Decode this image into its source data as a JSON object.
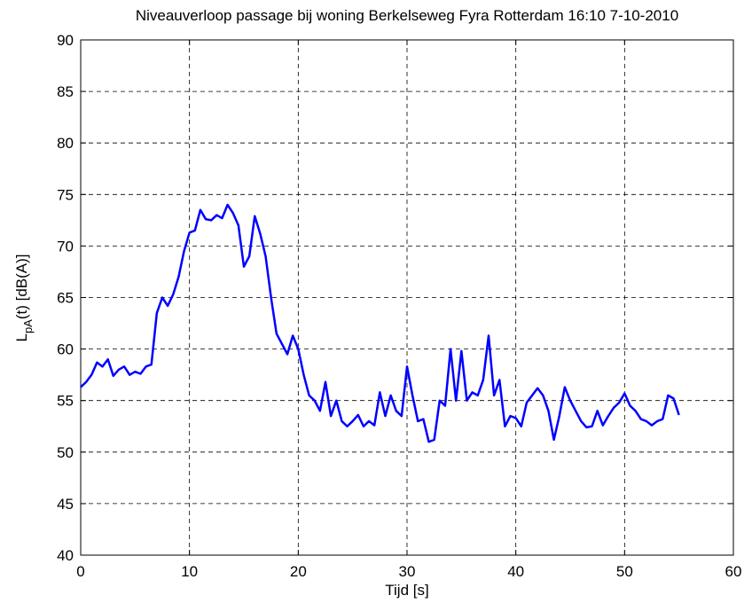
{
  "chart_data": {
    "type": "line",
    "title": "Niveauverloop passage bij woning Berkelseweg Fyra Rotterdam 16:10 7-10-2010",
    "xlabel": "Tijd [s]",
    "ylabel": {
      "base": "L",
      "subscript": "pA",
      "rest": "(t) [dB(A)]"
    },
    "x": [
      0,
      0.5,
      1,
      1.5,
      2,
      2.5,
      3,
      3.5,
      4,
      4.5,
      5,
      5.5,
      6,
      6.5,
      7,
      7.5,
      8,
      8.5,
      9,
      9.5,
      10,
      10.5,
      11,
      11.5,
      12,
      12.5,
      13,
      13.5,
      14,
      14.5,
      15,
      15.5,
      16,
      16.5,
      17,
      17.5,
      18,
      18.5,
      19,
      19.5,
      20,
      20.5,
      21,
      21.5,
      22,
      22.5,
      23,
      23.5,
      24,
      24.5,
      25,
      25.5,
      26,
      26.5,
      27,
      27.5,
      28,
      28.5,
      29,
      29.5,
      30,
      30.5,
      31,
      31.5,
      32,
      32.5,
      33,
      33.5,
      34,
      34.5,
      35,
      35.5,
      36,
      36.5,
      37,
      37.5,
      38,
      38.5,
      39,
      39.5,
      40,
      40.5,
      41,
      41.5,
      42,
      42.5,
      43,
      43.5,
      44,
      44.5,
      45,
      45.5,
      46,
      46.5,
      47,
      47.5,
      48,
      48.5,
      49,
      49.5,
      50,
      50.5,
      51,
      51.5,
      52,
      52.5,
      53,
      53.5,
      54,
      54.5,
      55
    ],
    "series": [
      {
        "name": "LpA",
        "color": "#0000ff",
        "values": [
          56.3,
          56.8,
          57.5,
          58.7,
          58.3,
          59.0,
          57.4,
          58.0,
          58.3,
          57.5,
          57.8,
          57.6,
          58.3,
          58.5,
          63.5,
          65.0,
          64.2,
          65.3,
          67.0,
          69.5,
          71.3,
          71.5,
          73.5,
          72.6,
          72.5,
          73.0,
          72.7,
          74.0,
          73.2,
          72.0,
          68.0,
          69.0,
          72.9,
          71.2,
          69.0,
          65.0,
          61.5,
          60.5,
          59.5,
          61.3,
          60.0,
          57.5,
          55.5,
          55.0,
          54.0,
          56.8,
          53.5,
          55.0,
          53.0,
          52.5,
          53.0,
          53.6,
          52.5,
          53.0,
          52.6,
          55.8,
          53.5,
          55.5,
          54.0,
          53.5,
          58.3,
          55.5,
          53.0,
          53.2,
          51.0,
          51.2,
          55.0,
          54.5,
          60.0,
          55.0,
          59.8,
          55.0,
          55.8,
          55.5,
          57.0,
          61.3,
          55.5,
          57.0,
          52.5,
          53.5,
          53.3,
          52.5,
          54.8,
          55.5,
          56.2,
          55.5,
          54.0,
          51.2,
          53.5,
          56.3,
          55.0,
          54.0,
          53.0,
          52.4,
          52.5,
          54.0,
          52.6,
          53.5,
          54.3,
          54.8,
          55.7,
          54.5,
          54.0,
          53.2,
          53.0,
          52.6,
          53.0,
          53.2,
          55.5,
          55.2,
          53.6
        ]
      }
    ],
    "xlim": [
      0,
      60
    ],
    "xticks": [
      0,
      10,
      20,
      30,
      40,
      50,
      60
    ],
    "ylim": [
      40,
      90
    ],
    "yticks": [
      40,
      45,
      50,
      55,
      60,
      65,
      70,
      75,
      80,
      85,
      90
    ],
    "grid": true
  }
}
